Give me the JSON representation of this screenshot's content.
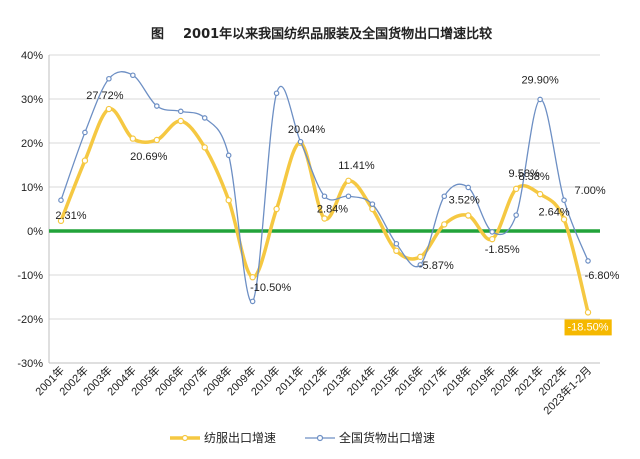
{
  "chart_data": {
    "type": "line",
    "title_prefix": "图",
    "title": "2001年以来我国纺织品服装及全国货物出口增速比较",
    "categories": [
      "2001年",
      "2002年",
      "2003年",
      "2004年",
      "2005年",
      "2006年",
      "2007年",
      "2008年",
      "2009年",
      "2010年",
      "2011年",
      "2012年",
      "2013年",
      "2014年",
      "2015年",
      "2016年",
      "2017年",
      "2018年",
      "2019年",
      "2020年",
      "2021年",
      "2022年",
      "2023年1-2月"
    ],
    "ylim": [
      -30,
      40
    ],
    "yticks": [
      "-30%",
      "-20%",
      "-10%",
      "0%",
      "10%",
      "20%",
      "30%",
      "40%"
    ],
    "yticks_values": [
      -30,
      -20,
      -10,
      0,
      10,
      20,
      30,
      40
    ],
    "grid": true,
    "legend_position": "bottom",
    "zero_line_color": "#22a33a",
    "series": [
      {
        "name": "纺服出口增速",
        "color": "#f5c842",
        "values": [
          2.31,
          16,
          27.72,
          21,
          20.69,
          25,
          19,
          7,
          -10.5,
          5,
          20.04,
          2.84,
          11.41,
          5,
          -4.5,
          -5.87,
          1.5,
          3.52,
          -1.85,
          9.58,
          8.38,
          2.64,
          -18.5
        ]
      },
      {
        "name": "全国货物出口增速",
        "color": "#6d8fc4",
        "values": [
          7,
          22.4,
          34.6,
          35.4,
          28.4,
          27.2,
          25.7,
          17.2,
          -16.0,
          31.3,
          20.3,
          7.9,
          7.9,
          6.1,
          -2.9,
          -7.7,
          7.9,
          9.9,
          -0.2,
          3.6,
          29.9,
          7.0,
          -6.8
        ]
      }
    ],
    "data_labels": {
      "yellow": [
        {
          "index": 0,
          "text": "2.31%"
        },
        {
          "index": 2,
          "text": "27.72%"
        },
        {
          "index": 4,
          "text": "20.69%"
        },
        {
          "index": 8,
          "text": "-10.50%"
        },
        {
          "index": 10,
          "text": "20.04%"
        },
        {
          "index": 11,
          "text": "2.84%"
        },
        {
          "index": 12,
          "text": "11.41%"
        },
        {
          "index": 15,
          "text": "-5.87%"
        },
        {
          "index": 17,
          "text": "3.52%"
        },
        {
          "index": 18,
          "text": "-1.85%"
        },
        {
          "index": 19,
          "text": "9.58%"
        },
        {
          "index": 20,
          "text": "8.38%"
        },
        {
          "index": 21,
          "text": "2.64%"
        },
        {
          "index": 22,
          "text": "-18.50%",
          "highlight": "#f5b800"
        }
      ],
      "blue": [
        {
          "index": 20,
          "text": "29.90%"
        },
        {
          "index": 21,
          "text": "7.00%"
        },
        {
          "index": 22,
          "text": "-6.80%"
        }
      ]
    }
  }
}
